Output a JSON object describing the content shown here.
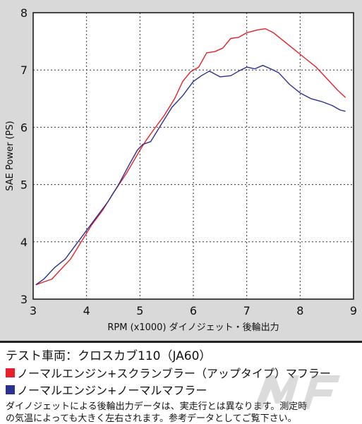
{
  "chart_data": {
    "type": "line",
    "title": "",
    "xlabel": "RPM (x1000) ダイノジェット・後輪出力",
    "ylabel": "SAE Power (PS)",
    "xlim": [
      3,
      9
    ],
    "ylim": [
      3,
      8
    ],
    "xticks": [
      "3",
      "4",
      "5",
      "6",
      "7",
      "8",
      "9"
    ],
    "yticks": [
      "3",
      "4",
      "5",
      "6",
      "7",
      "8"
    ],
    "grid": true,
    "legend_position": "below",
    "series": [
      {
        "name": "ノーマルエンジン+スクランブラー（アップタイプ）マフラー",
        "color": "#e8202a",
        "x": [
          3.05,
          3.2,
          3.35,
          3.5,
          3.7,
          3.9,
          4.1,
          4.3,
          4.5,
          4.75,
          5.0,
          5.1,
          5.25,
          5.45,
          5.65,
          5.8,
          5.95,
          6.1,
          6.25,
          6.4,
          6.55,
          6.7,
          6.85,
          7.0,
          7.2,
          7.35,
          7.5,
          7.7,
          7.9,
          8.1,
          8.3,
          8.5,
          8.7,
          8.85
        ],
        "y": [
          3.25,
          3.3,
          3.35,
          3.5,
          3.7,
          4.0,
          4.3,
          4.55,
          4.85,
          5.2,
          5.6,
          5.75,
          5.95,
          6.2,
          6.5,
          6.8,
          6.97,
          7.05,
          7.3,
          7.32,
          7.38,
          7.55,
          7.57,
          7.65,
          7.7,
          7.72,
          7.65,
          7.5,
          7.35,
          7.2,
          7.05,
          6.85,
          6.65,
          6.52
        ]
      },
      {
        "name": "ノーマルエンジン+ノーマルマフラー",
        "color": "#2b3190",
        "x": [
          3.05,
          3.2,
          3.4,
          3.6,
          3.8,
          4.0,
          4.2,
          4.4,
          4.6,
          4.8,
          4.95,
          5.05,
          5.2,
          5.4,
          5.6,
          5.8,
          6.0,
          6.15,
          6.3,
          6.5,
          6.7,
          6.85,
          7.0,
          7.15,
          7.3,
          7.45,
          7.6,
          7.8,
          8.0,
          8.2,
          8.4,
          8.6,
          8.75,
          8.85
        ],
        "y": [
          3.25,
          3.35,
          3.55,
          3.7,
          3.95,
          4.2,
          4.45,
          4.7,
          5.0,
          5.35,
          5.6,
          5.7,
          5.75,
          6.05,
          6.35,
          6.55,
          6.8,
          6.9,
          6.98,
          6.88,
          6.9,
          6.98,
          7.05,
          7.02,
          7.08,
          7.02,
          6.95,
          6.75,
          6.6,
          6.5,
          6.45,
          6.38,
          6.3,
          6.28
        ]
      }
    ]
  },
  "info": {
    "vehicle": "テスト車両：クロスカブ110（JA60）",
    "note_line1": "ダイノジェットによる後輪出力データは、実走行とは異なります。測定時",
    "note_line2": "の気温によっても大きく左右されます。参考データとしてご覧下さい。"
  },
  "logo": {
    "icon": "mf-watermark-logo",
    "color": "#999999"
  }
}
